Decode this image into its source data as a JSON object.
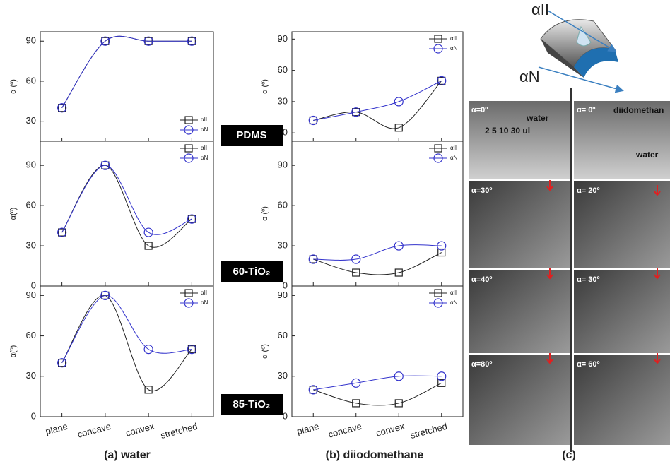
{
  "chart_data": [
    {
      "type": "line",
      "ylabel": "α (º)",
      "categories": [
        null,
        null,
        null,
        null
      ],
      "ylim": [
        15,
        97
      ],
      "yticks": [
        30,
        60,
        90
      ],
      "legend": "lower right",
      "series": [
        {
          "name": "αII",
          "color": "#222222",
          "marker": "square",
          "values": [
            40,
            90,
            90,
            90
          ]
        },
        {
          "name": "αN",
          "color": "#3333cc",
          "marker": "circle",
          "values": [
            40,
            90,
            90,
            90
          ]
        }
      ]
    },
    {
      "type": "line",
      "ylabel": "α(º)",
      "categories": [
        null,
        null,
        null,
        null
      ],
      "ylim": [
        0,
        108
      ],
      "yticks": [
        0,
        30,
        60,
        90
      ],
      "legend": "upper right",
      "series": [
        {
          "name": "αII",
          "color": "#222222",
          "marker": "square",
          "values": [
            40,
            90,
            30,
            50
          ]
        },
        {
          "name": "αN",
          "color": "#3333cc",
          "marker": "circle",
          "values": [
            40,
            90,
            40,
            50
          ]
        }
      ]
    },
    {
      "type": "line",
      "ylabel": "α(º)",
      "categories": [
        "plane",
        "concave",
        "convex",
        "stretched"
      ],
      "ylim": [
        0,
        97
      ],
      "yticks": [
        0,
        30,
        60,
        90
      ],
      "legend": "upper right",
      "series": [
        {
          "name": "αII",
          "color": "#222222",
          "marker": "square",
          "values": [
            40,
            90,
            20,
            50
          ]
        },
        {
          "name": "αN",
          "color": "#3333cc",
          "marker": "circle",
          "values": [
            40,
            90,
            50,
            50
          ]
        }
      ]
    },
    {
      "type": "line",
      "ylabel": "α (º)",
      "categories": [
        null,
        null,
        null,
        null
      ],
      "ylim": [
        -8,
        97
      ],
      "yticks": [
        0,
        30,
        60,
        90
      ],
      "legend": "upper right",
      "series": [
        {
          "name": "αII",
          "color": "#222222",
          "marker": "square",
          "values": [
            12,
            20,
            5,
            50
          ]
        },
        {
          "name": "αN",
          "color": "#3333cc",
          "marker": "circle",
          "values": [
            12,
            20,
            30,
            50
          ]
        }
      ]
    },
    {
      "type": "line",
      "ylabel": "α (º)",
      "categories": [
        null,
        null,
        null,
        null
      ],
      "ylim": [
        0,
        108
      ],
      "yticks": [
        0,
        30,
        60,
        90
      ],
      "legend": "upper right",
      "series": [
        {
          "name": "αII",
          "color": "#222222",
          "marker": "square",
          "values": [
            20,
            10,
            10,
            25
          ]
        },
        {
          "name": "αN",
          "color": "#3333cc",
          "marker": "circle",
          "values": [
            20,
            20,
            30,
            30
          ]
        }
      ]
    },
    {
      "type": "line",
      "ylabel": "α (º)",
      "categories": [
        "plane",
        "concave",
        "convex",
        "stretched"
      ],
      "ylim": [
        0,
        97
      ],
      "yticks": [
        0,
        30,
        60,
        90
      ],
      "legend": "upper right",
      "series": [
        {
          "name": "αII",
          "color": "#222222",
          "marker": "square",
          "values": [
            20,
            10,
            10,
            25
          ]
        },
        {
          "name": "αN",
          "color": "#3333cc",
          "marker": "circle",
          "values": [
            20,
            25,
            30,
            30
          ]
        }
      ]
    }
  ],
  "samples": [
    "PDMS",
    "60-TiO₂",
    "85-TiO₂"
  ],
  "captions": [
    "(a) water",
    "(b) diiodomethane",
    "(c)"
  ],
  "schematic": [
    "αII",
    "αN"
  ],
  "photos": {
    "left": [
      "α=0º",
      "α=30º",
      "α=40º",
      "α=80º"
    ],
    "right": [
      "α= 0º",
      "α= 20º",
      "α= 30º",
      "α= 60º"
    ],
    "water_title": "water",
    "volumes": "2   5   10   30  ul",
    "liquid": "diidomethan",
    "liquid2": "water"
  }
}
